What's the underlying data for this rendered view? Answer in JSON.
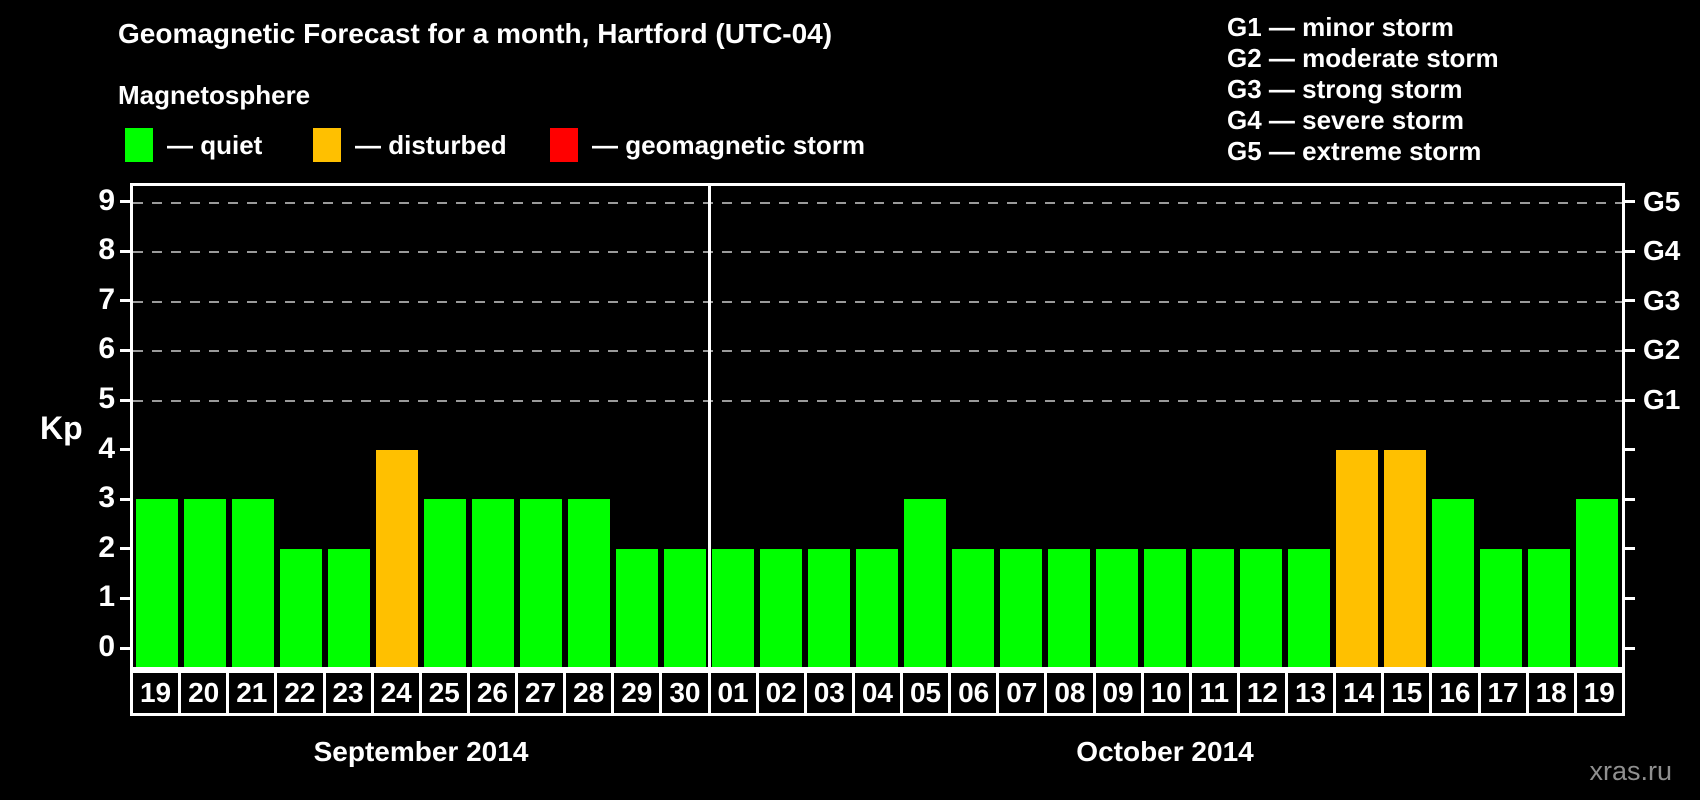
{
  "subtitle": "Magnetosphere",
  "legend": {
    "items": [
      {
        "label": "— quiet",
        "status": "quiet",
        "color": "#00ff00"
      },
      {
        "label": "— disturbed",
        "status": "disturbed",
        "color": "#ffc000"
      },
      {
        "label": "— geomagnetic storm",
        "status": "storm",
        "color": "#ff0000"
      }
    ]
  },
  "g_legend": [
    "G1 — minor storm",
    "G2 — moderate storm",
    "G3 — strong storm",
    "G4 — severe storm",
    "G5 — extreme storm"
  ],
  "watermark": "xras.ru",
  "chart_data": {
    "type": "bar",
    "title": "Geomagnetic Forecast for a month, Hartford (UTC-04)",
    "ylabel": "Kp",
    "ylim": [
      0,
      9.5
    ],
    "yticks": [
      0,
      1,
      2,
      3,
      4,
      5,
      6,
      7,
      8,
      9
    ],
    "grid_levels": [
      5,
      6,
      7,
      8,
      9
    ],
    "right_axis": [
      {
        "kp": 5,
        "label": "G1"
      },
      {
        "kp": 6,
        "label": "G2"
      },
      {
        "kp": 7,
        "label": "G3"
      },
      {
        "kp": 8,
        "label": "G4"
      },
      {
        "kp": 9,
        "label": "G5"
      }
    ],
    "status_colors": {
      "quiet": "#00ff00",
      "disturbed": "#ffc000",
      "storm": "#ff0000"
    },
    "months": [
      {
        "label": "September 2014",
        "days": [
          {
            "day": "19",
            "kp": 3,
            "status": "quiet"
          },
          {
            "day": "20",
            "kp": 3,
            "status": "quiet"
          },
          {
            "day": "21",
            "kp": 3,
            "status": "quiet"
          },
          {
            "day": "22",
            "kp": 2,
            "status": "quiet"
          },
          {
            "day": "23",
            "kp": 2,
            "status": "quiet"
          },
          {
            "day": "24",
            "kp": 4,
            "status": "disturbed"
          },
          {
            "day": "25",
            "kp": 3,
            "status": "quiet"
          },
          {
            "day": "26",
            "kp": 3,
            "status": "quiet"
          },
          {
            "day": "27",
            "kp": 3,
            "status": "quiet"
          },
          {
            "day": "28",
            "kp": 3,
            "status": "quiet"
          },
          {
            "day": "29",
            "kp": 2,
            "status": "quiet"
          },
          {
            "day": "30",
            "kp": 2,
            "status": "quiet"
          }
        ]
      },
      {
        "label": "October 2014",
        "days": [
          {
            "day": "01",
            "kp": 2,
            "status": "quiet"
          },
          {
            "day": "02",
            "kp": 2,
            "status": "quiet"
          },
          {
            "day": "03",
            "kp": 2,
            "status": "quiet"
          },
          {
            "day": "04",
            "kp": 2,
            "status": "quiet"
          },
          {
            "day": "05",
            "kp": 3,
            "status": "quiet"
          },
          {
            "day": "06",
            "kp": 2,
            "status": "quiet"
          },
          {
            "day": "07",
            "kp": 2,
            "status": "quiet"
          },
          {
            "day": "08",
            "kp": 2,
            "status": "quiet"
          },
          {
            "day": "09",
            "kp": 2,
            "status": "quiet"
          },
          {
            "day": "10",
            "kp": 2,
            "status": "quiet"
          },
          {
            "day": "11",
            "kp": 2,
            "status": "quiet"
          },
          {
            "day": "12",
            "kp": 2,
            "status": "quiet"
          },
          {
            "day": "13",
            "kp": 2,
            "status": "quiet"
          },
          {
            "day": "14",
            "kp": 4,
            "status": "disturbed"
          },
          {
            "day": "15",
            "kp": 4,
            "status": "disturbed"
          },
          {
            "day": "16",
            "kp": 3,
            "status": "quiet"
          },
          {
            "day": "17",
            "kp": 2,
            "status": "quiet"
          },
          {
            "day": "18",
            "kp": 2,
            "status": "quiet"
          },
          {
            "day": "19",
            "kp": 3,
            "status": "quiet"
          }
        ]
      }
    ]
  }
}
